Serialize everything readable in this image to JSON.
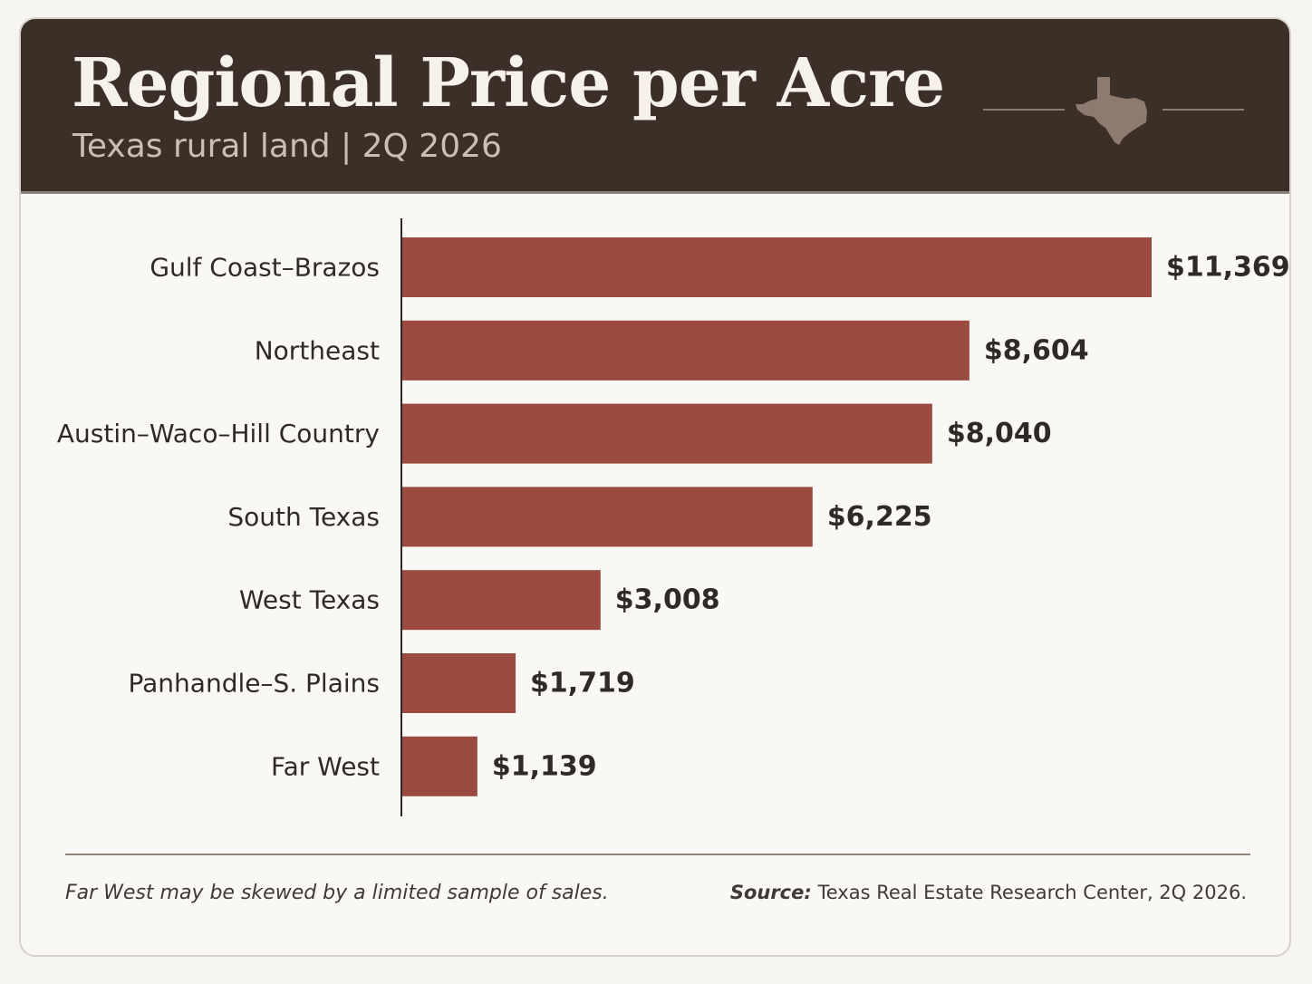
{
  "header": {
    "title": "Regional Price per Acre",
    "subtitle": "Texas rural land | 2Q 2026",
    "emblem_icon": "texas-map-icon"
  },
  "colors": {
    "header_bg": "#3b2f27",
    "bar": "#9b4a3f",
    "emblem": "#8c7b6e"
  },
  "chart_data": {
    "type": "bar",
    "orientation": "horizontal",
    "categories": [
      "Gulf Coast–Brazos",
      "Northeast",
      "Austin–Waco–Hill Country",
      "South Texas",
      "West Texas",
      "Panhandle–S. Plains",
      "Far West"
    ],
    "values": [
      11369,
      8604,
      8040,
      6225,
      3008,
      1719,
      1139
    ],
    "value_labels": [
      "$11,369",
      "$8,604",
      "$8,040",
      "$6,225",
      "$3,008",
      "$1,719",
      "$1,139"
    ],
    "xlim": [
      0,
      11369
    ],
    "grid": false,
    "legend": "none"
  },
  "footer": {
    "note": "Far West may be skewed by a limited sample of sales.",
    "source_label": "Source:",
    "source_text": "Texas Real Estate Research Center, 2Q 2026."
  }
}
